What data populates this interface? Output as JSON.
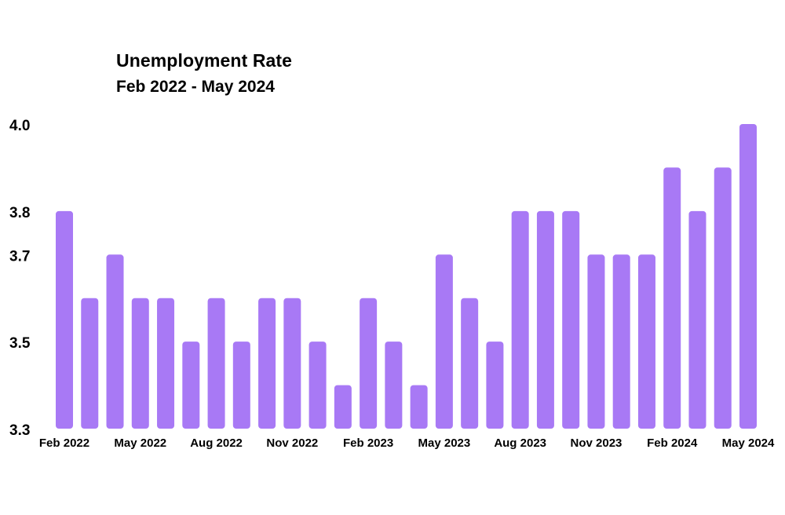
{
  "chart_data": {
    "type": "bar",
    "title": "Unemployment Rate",
    "subtitle": "Feb 2022 - May 2024",
    "xlabel": "",
    "ylabel": "",
    "ylim": [
      3.3,
      4.0
    ],
    "yticks": [
      3.3,
      3.5,
      3.7,
      3.8,
      4.0
    ],
    "ytick_labels": [
      "3.3",
      "3.5",
      "3.7",
      "3.8",
      "4.0"
    ],
    "categories": [
      "Feb 2022",
      "Mar 2022",
      "Apr 2022",
      "May 2022",
      "Jun 2022",
      "Jul 2022",
      "Aug 2022",
      "Sep 2022",
      "Oct 2022",
      "Nov 2022",
      "Dec 2022",
      "Jan 2023",
      "Feb 2023",
      "Mar 2023",
      "Apr 2023",
      "May 2023",
      "Jun 2023",
      "Jul 2023",
      "Aug 2023",
      "Sep 2023",
      "Oct 2023",
      "Nov 2023",
      "Dec 2023",
      "Jan 2024",
      "Feb 2024",
      "Mar 2024",
      "Apr 2024",
      "May 2024"
    ],
    "visible_xtick_labels": [
      "Feb 2022",
      "May 2022",
      "Aug 2022",
      "Nov 2022",
      "Feb 2023",
      "May 2023",
      "Aug 2023",
      "Nov 2023",
      "Feb 2024",
      "May 2024"
    ],
    "values": [
      3.8,
      3.6,
      3.7,
      3.6,
      3.6,
      3.5,
      3.6,
      3.5,
      3.6,
      3.6,
      3.5,
      3.4,
      3.6,
      3.5,
      3.4,
      3.7,
      3.6,
      3.5,
      3.8,
      3.8,
      3.8,
      3.7,
      3.7,
      3.7,
      3.9,
      3.8,
      3.9,
      4.0
    ],
    "bar_color": "#A879F5",
    "grid": false,
    "legend": "none"
  }
}
